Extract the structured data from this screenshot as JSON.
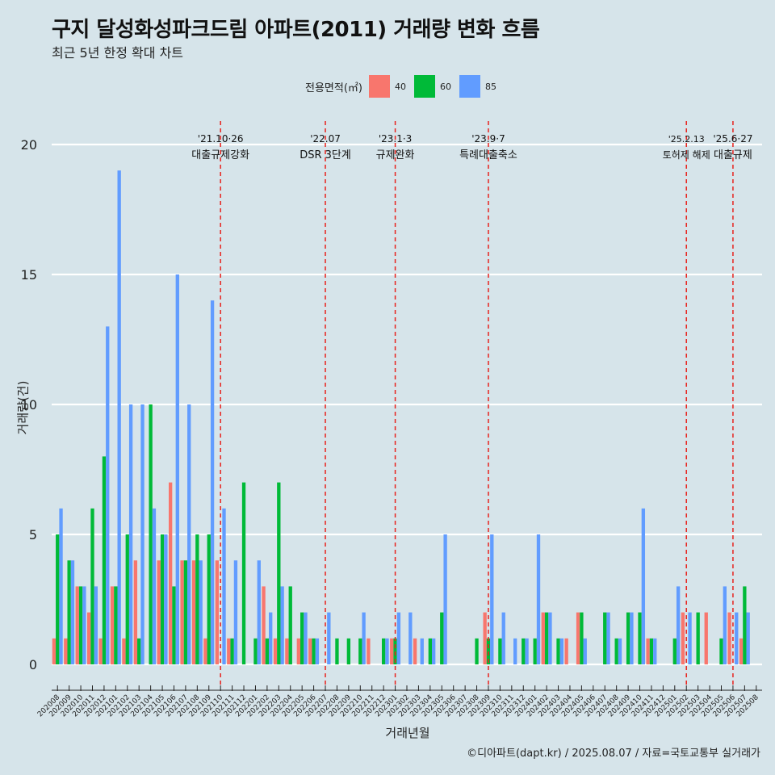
{
  "title": "구지 달성화성파크드림 아파트(2011) 거래량 변화 흐름",
  "subtitle": "최근 5년 한정 확대 차트",
  "caption": "©디아파트(dapt.kr) / 2025.08.07 / 자료=국토교통부 실거래가",
  "chart_data": {
    "type": "bar",
    "title": "구지 달성화성파크드림 아파트(2011) 거래량 변화 흐름",
    "subtitle": "최근 5년 한정 확대 차트",
    "xlabel": "거래년월",
    "ylabel": "거래량(건)",
    "ylim": [
      0,
      20
    ],
    "yticks": [
      0,
      5,
      10,
      15,
      20
    ],
    "legend": {
      "title": "전용면적(㎡)",
      "position": "top"
    },
    "categories": [
      "202008",
      "202009",
      "202010",
      "202011",
      "202012",
      "202101",
      "202102",
      "202103",
      "202104",
      "202105",
      "202106",
      "202107",
      "202108",
      "202109",
      "202110",
      "202111",
      "202112",
      "202201",
      "202202",
      "202203",
      "202204",
      "202205",
      "202206",
      "202207",
      "202208",
      "202209",
      "202210",
      "202211",
      "202212",
      "202301",
      "202302",
      "202303",
      "202304",
      "202305",
      "202306",
      "202307",
      "202308",
      "202309",
      "202310",
      "202311",
      "202312",
      "202401",
      "202402",
      "202403",
      "202404",
      "202405",
      "202406",
      "202407",
      "202408",
      "202409",
      "202410",
      "202411",
      "202412",
      "202501",
      "202502",
      "202503",
      "202504",
      "202505",
      "202506",
      "202507",
      "202508"
    ],
    "series": [
      {
        "name": "40",
        "color": "#f8766d",
        "values": [
          1,
          1,
          3,
          2,
          1,
          3,
          1,
          4,
          0,
          4,
          7,
          4,
          4,
          1,
          4,
          1,
          0,
          0,
          3,
          1,
          1,
          1,
          1,
          0,
          0,
          0,
          0,
          1,
          0,
          1,
          0,
          1,
          0,
          0,
          0,
          0,
          0,
          2,
          0,
          0,
          0,
          0,
          2,
          0,
          1,
          2,
          0,
          0,
          0,
          0,
          0,
          1,
          0,
          0,
          2,
          0,
          2,
          0,
          2,
          1,
          0
        ]
      },
      {
        "name": "60",
        "color": "#00ba38",
        "values": [
          5,
          4,
          3,
          6,
          8,
          3,
          5,
          1,
          10,
          5,
          3,
          4,
          5,
          5,
          0,
          1,
          7,
          1,
          1,
          7,
          3,
          2,
          1,
          0,
          1,
          1,
          1,
          0,
          1,
          1,
          0,
          0,
          1,
          2,
          0,
          0,
          1,
          1,
          1,
          0,
          1,
          1,
          2,
          1,
          0,
          2,
          0,
          2,
          1,
          2,
          2,
          1,
          0,
          1,
          0,
          2,
          0,
          1,
          0,
          3,
          0
        ]
      },
      {
        "name": "85",
        "color": "#619cff",
        "values": [
          6,
          4,
          3,
          3,
          13,
          19,
          10,
          10,
          6,
          5,
          15,
          10,
          4,
          14,
          6,
          4,
          0,
          4,
          2,
          3,
          0,
          2,
          1,
          2,
          0,
          0,
          2,
          0,
          1,
          2,
          2,
          1,
          1,
          5,
          0,
          0,
          0,
          5,
          2,
          1,
          1,
          5,
          2,
          1,
          0,
          1,
          0,
          2,
          1,
          2,
          6,
          1,
          0,
          3,
          2,
          0,
          0,
          3,
          2,
          2,
          0
        ]
      }
    ],
    "annotations": [
      {
        "category": "202110",
        "date": "'21.10·26",
        "label": "대출규제강화"
      },
      {
        "category": "202207",
        "date": "'22.07",
        "label": "DSR 3단계"
      },
      {
        "category": "202301",
        "date": "'23.1·3",
        "label": "규제완화"
      },
      {
        "category": "202309",
        "date": "'23.9·7",
        "label": "특례대출축소"
      },
      {
        "category": "202502",
        "date": "'25.2.13",
        "label": "토허제 해제"
      },
      {
        "category": "202506",
        "date": "'25.6·27",
        "label": "대출규제"
      }
    ]
  }
}
